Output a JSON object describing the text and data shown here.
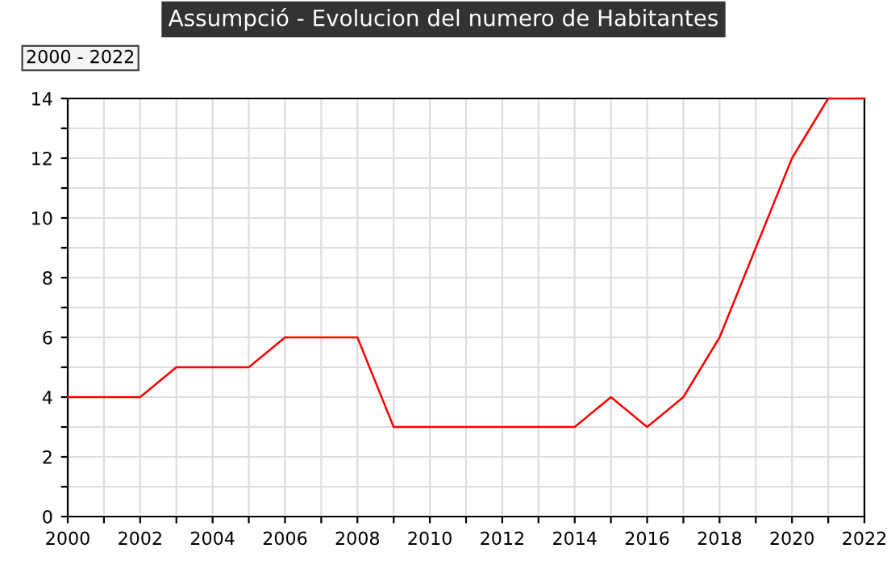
{
  "chart_data": {
    "type": "line",
    "title": "Assumpció - Evolucion del numero de Habitantes",
    "annotations": [
      "2000 - 2022"
    ],
    "x": [
      2000,
      2001,
      2002,
      2003,
      2004,
      2005,
      2006,
      2007,
      2008,
      2009,
      2010,
      2011,
      2012,
      2013,
      2014,
      2015,
      2016,
      2017,
      2018,
      2019,
      2020,
      2021,
      2022
    ],
    "series": [
      {
        "color": "#ff0000",
        "values": [
          4,
          4,
          4,
          5,
          5,
          5,
          6,
          6,
          6,
          3,
          3,
          3,
          3,
          3,
          3,
          4,
          3,
          4,
          6,
          9,
          12,
          14,
          14
        ]
      }
    ],
    "xlim": [
      2000,
      2022
    ],
    "xticks": [
      2000,
      {
        "value": 2001,
        "label": null
      },
      2002,
      {
        "value": 2003,
        "label": null
      },
      2004,
      {
        "value": 2005,
        "label": null
      },
      2006,
      {
        "value": 2007,
        "label": null
      },
      2008,
      {
        "value": 2009,
        "label": null
      },
      2010,
      {
        "value": 2011,
        "label": null
      },
      2012,
      {
        "value": 2013,
        "label": null
      },
      2014,
      {
        "value": 2015,
        "label": null
      },
      2016,
      {
        "value": 2017,
        "label": null
      },
      2018,
      {
        "value": 2019,
        "label": null
      },
      2020,
      {
        "value": 2021,
        "label": null
      },
      2022
    ],
    "ylim": [
      0,
      14
    ],
    "yticks": [
      0,
      {
        "value": 1,
        "label": null
      },
      2,
      {
        "value": 3,
        "label": null
      },
      4,
      {
        "value": 5,
        "label": null
      },
      6,
      {
        "value": 7,
        "label": null
      },
      8,
      {
        "value": 9,
        "label": null
      },
      10,
      {
        "value": 11,
        "label": null
      },
      12,
      {
        "value": 13,
        "label": null
      },
      14
    ],
    "grid": true,
    "legend": false,
    "marker": "none",
    "line_style": "solid"
  }
}
